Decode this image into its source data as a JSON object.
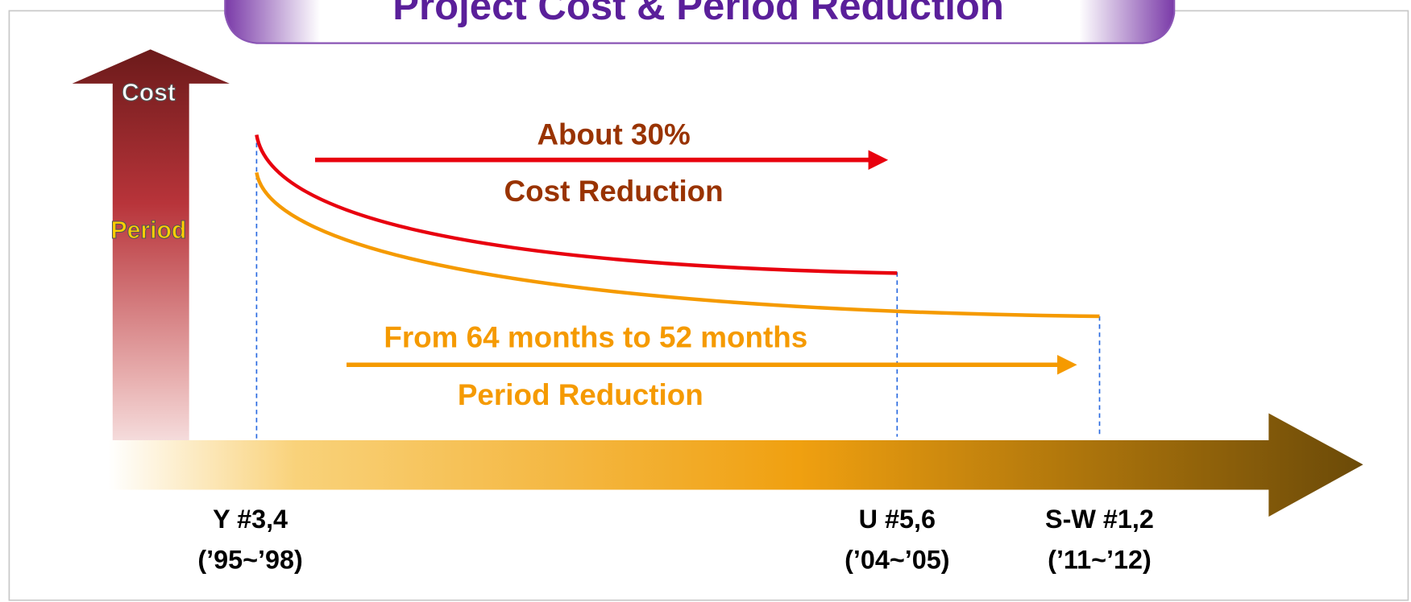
{
  "header": {
    "title": "Project Cost & Period Reduction"
  },
  "axes": {
    "vertical": {
      "top_label": "Cost",
      "bottom_label": "Period"
    }
  },
  "annotations": {
    "cost": {
      "amount": "About 30%",
      "label": "Cost Reduction"
    },
    "period": {
      "amount": "From 64 months to 52 months",
      "label": "Period Reduction"
    }
  },
  "milestones": [
    {
      "name": "Y #3,4",
      "years": "(’95~’98)"
    },
    {
      "name": "U #5,6",
      "years": "(’04~’05)"
    },
    {
      "name": "S-W #1,2",
      "years": "(’11~’12)"
    }
  ]
}
